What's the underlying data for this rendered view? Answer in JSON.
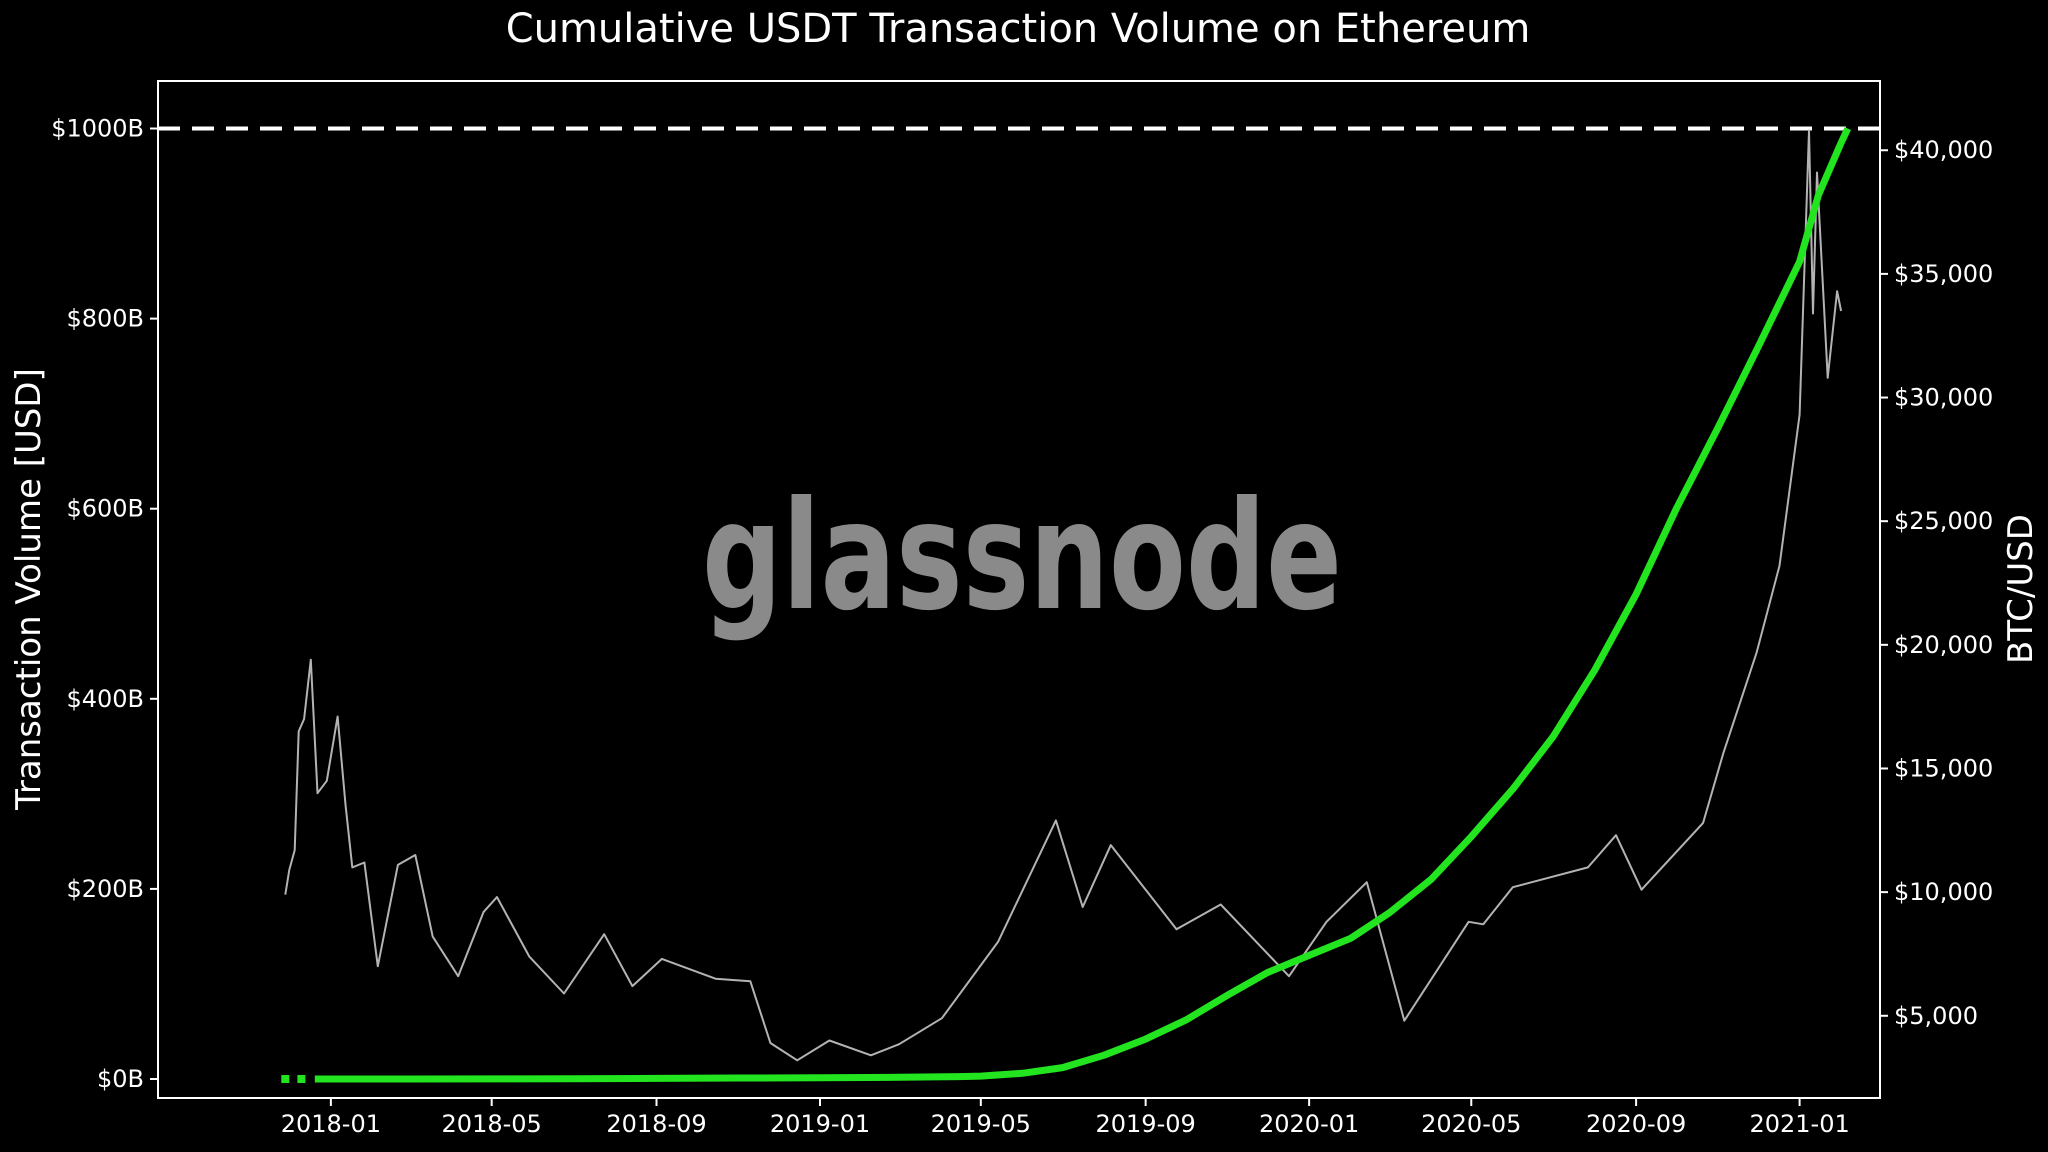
{
  "chart_data": {
    "type": "line",
    "title": "Cumulative USDT Transaction Volume on Ethereum",
    "watermark": "glassnode",
    "y_left": {
      "label": "Transaction Volume [USD]",
      "range": [
        -20,
        1050
      ],
      "ticks": [
        0,
        200,
        400,
        600,
        800,
        1000
      ],
      "tick_labels": [
        "$0B",
        "$200B",
        "$400B",
        "$600B",
        "$800B",
        "$1000B"
      ]
    },
    "y_right": {
      "label": "BTC/USD",
      "range": [
        1675,
        42800
      ],
      "ticks": [
        5000,
        10000,
        15000,
        20000,
        25000,
        30000,
        35000,
        40000
      ],
      "tick_labels": [
        "$5,000",
        "$10,000",
        "$15,000",
        "$20,000",
        "$25,000",
        "$30,000",
        "$35,000",
        "$40,000"
      ]
    },
    "x": {
      "range": [
        "2017-08-25",
        "2021-03-02"
      ],
      "ticks": [
        "2018-01-01",
        "2018-05-01",
        "2018-09-01",
        "2019-01-01",
        "2019-05-01",
        "2019-09-01",
        "2020-01-01",
        "2020-05-01",
        "2020-09-01",
        "2021-01-01"
      ],
      "tick_labels": [
        "2018-01",
        "2018-05",
        "2018-09",
        "2019-01",
        "2019-05",
        "2019-09",
        "2020-01",
        "2020-05",
        "2020-09",
        "2021-01"
      ]
    },
    "reference_line": {
      "y": 1000,
      "style": "dashed",
      "color": "#ffffff"
    },
    "colors": {
      "background": "#000000",
      "volume": "#22e51f",
      "price": "#b3b3b3",
      "text": "#ffffff"
    },
    "series": [
      {
        "key": "cumulative_volume",
        "axis": "left",
        "unit": "B USD",
        "points": [
          [
            "2017-11-28",
            0
          ],
          [
            "2017-12-10",
            0
          ],
          [
            "2017-12-20",
            0
          ],
          [
            "2018-01-01",
            0
          ],
          [
            "2018-03-01",
            0
          ],
          [
            "2018-05-01",
            0.1
          ],
          [
            "2018-07-01",
            0.3
          ],
          [
            "2018-09-01",
            0.6
          ],
          [
            "2018-11-01",
            1
          ],
          [
            "2019-01-01",
            1.3
          ],
          [
            "2019-03-01",
            1.8
          ],
          [
            "2019-04-15",
            2.5
          ],
          [
            "2019-05-01",
            3
          ],
          [
            "2019-06-01",
            6
          ],
          [
            "2019-07-01",
            12
          ],
          [
            "2019-08-01",
            25
          ],
          [
            "2019-09-01",
            42
          ],
          [
            "2019-10-01",
            62
          ],
          [
            "2019-11-01",
            88
          ],
          [
            "2019-12-01",
            112
          ],
          [
            "2020-01-01",
            130
          ],
          [
            "2020-02-01",
            148
          ],
          [
            "2020-03-01",
            175
          ],
          [
            "2020-04-01",
            210
          ],
          [
            "2020-05-01",
            255
          ],
          [
            "2020-06-01",
            305
          ],
          [
            "2020-07-01",
            360
          ],
          [
            "2020-08-01",
            430
          ],
          [
            "2020-09-01",
            510
          ],
          [
            "2020-10-01",
            600
          ],
          [
            "2020-11-01",
            685
          ],
          [
            "2020-12-01",
            770
          ],
          [
            "2021-01-01",
            860
          ],
          [
            "2021-01-15",
            930
          ],
          [
            "2021-02-01",
            985
          ],
          [
            "2021-02-06",
            1000
          ]
        ]
      },
      {
        "key": "btc_price",
        "axis": "right",
        "unit": "USD",
        "points": [
          [
            "2017-11-28",
            9900
          ],
          [
            "2017-12-01",
            10900
          ],
          [
            "2017-12-05",
            11700
          ],
          [
            "2017-12-08",
            16500
          ],
          [
            "2017-12-12",
            17000
          ],
          [
            "2017-12-17",
            19400
          ],
          [
            "2017-12-22",
            14000
          ],
          [
            "2017-12-29",
            14500
          ],
          [
            "2018-01-06",
            17100
          ],
          [
            "2018-01-12",
            13500
          ],
          [
            "2018-01-17",
            11000
          ],
          [
            "2018-01-26",
            11200
          ],
          [
            "2018-02-05",
            7000
          ],
          [
            "2018-02-20",
            11100
          ],
          [
            "2018-03-05",
            11500
          ],
          [
            "2018-03-18",
            8200
          ],
          [
            "2018-04-06",
            6600
          ],
          [
            "2018-04-25",
            9200
          ],
          [
            "2018-05-05",
            9800
          ],
          [
            "2018-05-29",
            7400
          ],
          [
            "2018-06-24",
            5900
          ],
          [
            "2018-07-24",
            8300
          ],
          [
            "2018-08-14",
            6200
          ],
          [
            "2018-09-05",
            7300
          ],
          [
            "2018-10-15",
            6500
          ],
          [
            "2018-11-10",
            6400
          ],
          [
            "2018-11-25",
            3900
          ],
          [
            "2018-12-15",
            3200
          ],
          [
            "2019-01-08",
            4000
          ],
          [
            "2019-02-08",
            3400
          ],
          [
            "2019-03-01",
            3850
          ],
          [
            "2019-04-02",
            4900
          ],
          [
            "2019-05-14",
            8000
          ],
          [
            "2019-06-26",
            12900
          ],
          [
            "2019-07-16",
            9400
          ],
          [
            "2019-08-06",
            11900
          ],
          [
            "2019-09-24",
            8500
          ],
          [
            "2019-10-27",
            9500
          ],
          [
            "2019-12-17",
            6600
          ],
          [
            "2020-01-14",
            8800
          ],
          [
            "2020-02-13",
            10400
          ],
          [
            "2020-03-12",
            4800
          ],
          [
            "2020-04-29",
            8800
          ],
          [
            "2020-05-10",
            8700
          ],
          [
            "2020-06-01",
            10200
          ],
          [
            "2020-07-27",
            11000
          ],
          [
            "2020-08-17",
            12300
          ],
          [
            "2020-09-05",
            10100
          ],
          [
            "2020-10-21",
            12800
          ],
          [
            "2020-11-05",
            15600
          ],
          [
            "2020-11-30",
            19700
          ],
          [
            "2020-12-17",
            23200
          ],
          [
            "2021-01-01",
            29300
          ],
          [
            "2021-01-08",
            40800
          ],
          [
            "2021-01-11",
            33400
          ],
          [
            "2021-01-14",
            39100
          ],
          [
            "2021-01-22",
            30800
          ],
          [
            "2021-01-29",
            34300
          ],
          [
            "2021-02-01",
            33500
          ]
        ]
      }
    ]
  }
}
